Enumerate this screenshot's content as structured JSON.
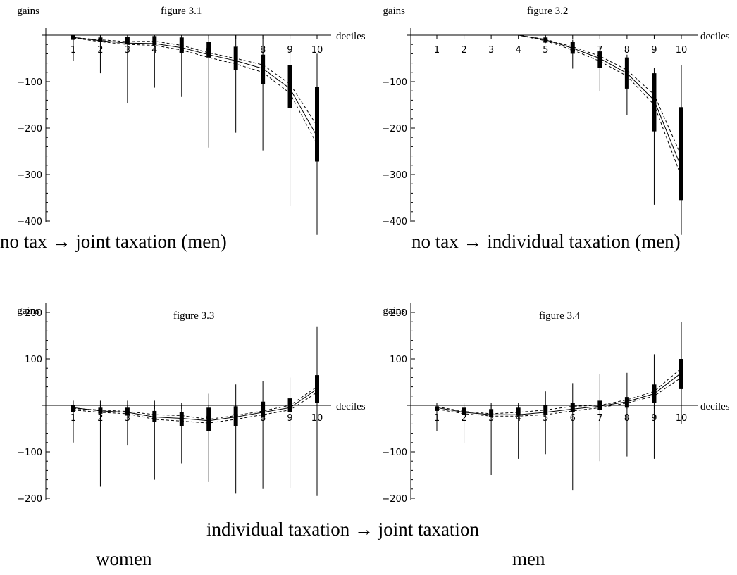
{
  "chart_data": [
    {
      "type": "line",
      "title": "figure 3.1",
      "ylabel": "gains",
      "xlabel": "deciles",
      "caption": "no tax → joint taxation (men)",
      "ylim": [
        -430,
        40
      ],
      "yticks": [
        -400,
        -300,
        -200,
        -100
      ],
      "x": [
        1,
        2,
        3,
        4,
        5,
        6,
        7,
        8,
        9,
        10
      ],
      "series": [
        {
          "style": "solid",
          "values": [
            -5,
            -12,
            -17,
            -18,
            -27,
            -42,
            -55,
            -72,
            -115,
            -218
          ]
        },
        {
          "style": "dashed",
          "values": [
            -5,
            -10,
            -14,
            -13,
            -22,
            -38,
            -50,
            -64,
            -105,
            -195
          ]
        },
        {
          "style": "dashed",
          "values": [
            -6,
            -14,
            -20,
            -22,
            -32,
            -48,
            -62,
            -80,
            -125,
            -235
          ]
        }
      ],
      "bars": {
        "x": [
          1,
          2,
          3,
          4,
          5,
          6,
          7,
          8,
          9,
          10
        ],
        "whisker": [
          [
            -55,
            0
          ],
          [
            -82,
            0
          ],
          [
            -147,
            0
          ],
          [
            -113,
            0
          ],
          [
            -133,
            0
          ],
          [
            -242,
            0
          ],
          [
            -210,
            0
          ],
          [
            -248,
            0
          ],
          [
            -368,
            -35
          ],
          [
            -430,
            -40
          ]
        ],
        "box": [
          [
            -10,
            0
          ],
          [
            -15,
            -5
          ],
          [
            -20,
            -3
          ],
          [
            -22,
            -2
          ],
          [
            -38,
            -5
          ],
          [
            -48,
            -15
          ],
          [
            -75,
            -25
          ],
          [
            -105,
            -42
          ],
          [
            -157,
            -65
          ],
          [
            -272,
            -112
          ]
        ]
      }
    },
    {
      "type": "line",
      "title": "figure 3.2",
      "ylabel": "gains",
      "xlabel": "deciles",
      "caption": "no tax → individual taxation (men)",
      "ylim": [
        -430,
        40
      ],
      "yticks": [
        -400,
        -300,
        -200,
        -100
      ],
      "x": [
        1,
        2,
        3,
        4,
        5,
        6,
        7,
        8,
        9,
        10
      ],
      "series": [
        {
          "style": "solid",
          "values": [
            0,
            0,
            0,
            0,
            -10,
            -28,
            -50,
            -82,
            -140,
            -285
          ]
        },
        {
          "style": "dashed",
          "values": [
            0,
            0,
            0,
            0,
            -9,
            -25,
            -45,
            -75,
            -128,
            -260
          ]
        },
        {
          "style": "dashed",
          "values": [
            0,
            0,
            0,
            0,
            -12,
            -32,
            -56,
            -88,
            -150,
            -305
          ]
        }
      ],
      "bars": {
        "x": [
          5,
          6,
          7,
          8,
          9,
          10
        ],
        "whisker": [
          [
            -17,
            0
          ],
          [
            -72,
            -10
          ],
          [
            -120,
            -25
          ],
          [
            -172,
            -42
          ],
          [
            -365,
            -70
          ],
          [
            -430,
            -65
          ]
        ],
        "box": [
          [
            -16,
            -5
          ],
          [
            -40,
            -15
          ],
          [
            -70,
            -35
          ],
          [
            -115,
            -48
          ],
          [
            -207,
            -82
          ],
          [
            -355,
            -155
          ]
        ]
      }
    },
    {
      "type": "line",
      "title": "figure 3.3",
      "ylabel": "gains",
      "xlabel": "deciles",
      "caption": "women",
      "ylim": [
        -200,
        200
      ],
      "yticks": [
        -200,
        -100,
        100,
        200
      ],
      "x": [
        1,
        2,
        3,
        4,
        5,
        6,
        7,
        8,
        9,
        10
      ],
      "series": [
        {
          "style": "solid",
          "values": [
            -5,
            -12,
            -15,
            -25,
            -28,
            -33,
            -25,
            -15,
            -5,
            35
          ]
        },
        {
          "style": "dashed",
          "values": [
            -7,
            -10,
            -13,
            -20,
            -22,
            -30,
            -22,
            -12,
            0,
            40
          ]
        },
        {
          "style": "dashed",
          "values": [
            -10,
            -15,
            -18,
            -30,
            -34,
            -38,
            -30,
            -20,
            -10,
            28
          ]
        }
      ],
      "bars": {
        "x": [
          1,
          2,
          3,
          4,
          5,
          6,
          7,
          8,
          9,
          10
        ],
        "whisker": [
          [
            -80,
            10
          ],
          [
            -175,
            10
          ],
          [
            -85,
            10
          ],
          [
            -160,
            10
          ],
          [
            -125,
            5
          ],
          [
            -165,
            25
          ],
          [
            -190,
            45
          ],
          [
            -180,
            52
          ],
          [
            -178,
            60
          ],
          [
            -195,
            170
          ]
        ],
        "box": [
          [
            -15,
            0
          ],
          [
            -18,
            -5
          ],
          [
            -22,
            -5
          ],
          [
            -35,
            -12
          ],
          [
            -45,
            -15
          ],
          [
            -55,
            -5
          ],
          [
            -45,
            -2
          ],
          [
            -25,
            8
          ],
          [
            -15,
            15
          ],
          [
            5,
            65
          ]
        ]
      }
    },
    {
      "type": "line",
      "title": "figure 3.4",
      "ylabel": "gains",
      "xlabel": "deciles",
      "caption": "men",
      "ylim": [
        -200,
        200
      ],
      "yticks": [
        -200,
        -100,
        100,
        200
      ],
      "x": [
        1,
        2,
        3,
        4,
        5,
        6,
        7,
        8,
        9,
        10
      ],
      "series": [
        {
          "style": "solid",
          "values": [
            -5,
            -15,
            -20,
            -20,
            -15,
            -8,
            -2,
            8,
            25,
            70
          ]
        },
        {
          "style": "dashed",
          "values": [
            -3,
            -13,
            -18,
            -15,
            -10,
            -2,
            0,
            12,
            30,
            80
          ]
        },
        {
          "style": "dashed",
          "values": [
            -8,
            -18,
            -23,
            -23,
            -20,
            -12,
            -5,
            5,
            20,
            60
          ]
        }
      ],
      "bars": {
        "x": [
          1,
          2,
          3,
          4,
          5,
          6,
          7,
          8,
          9,
          10
        ],
        "whisker": [
          [
            -55,
            5
          ],
          [
            -82,
            5
          ],
          [
            -150,
            5
          ],
          [
            -115,
            5
          ],
          [
            -105,
            30
          ],
          [
            -182,
            48
          ],
          [
            -120,
            68
          ],
          [
            -110,
            70
          ],
          [
            -115,
            110
          ],
          [
            -40,
            180
          ]
        ],
        "box": [
          [
            -12,
            -2
          ],
          [
            -20,
            -5
          ],
          [
            -25,
            -8
          ],
          [
            -22,
            -5
          ],
          [
            -20,
            0
          ],
          [
            -15,
            5
          ],
          [
            -10,
            10
          ],
          [
            -5,
            18
          ],
          [
            5,
            45
          ],
          [
            35,
            100
          ]
        ]
      }
    }
  ],
  "captions": {
    "bottom_center": "individual taxation → joint taxation",
    "women": "women",
    "men": "men"
  }
}
